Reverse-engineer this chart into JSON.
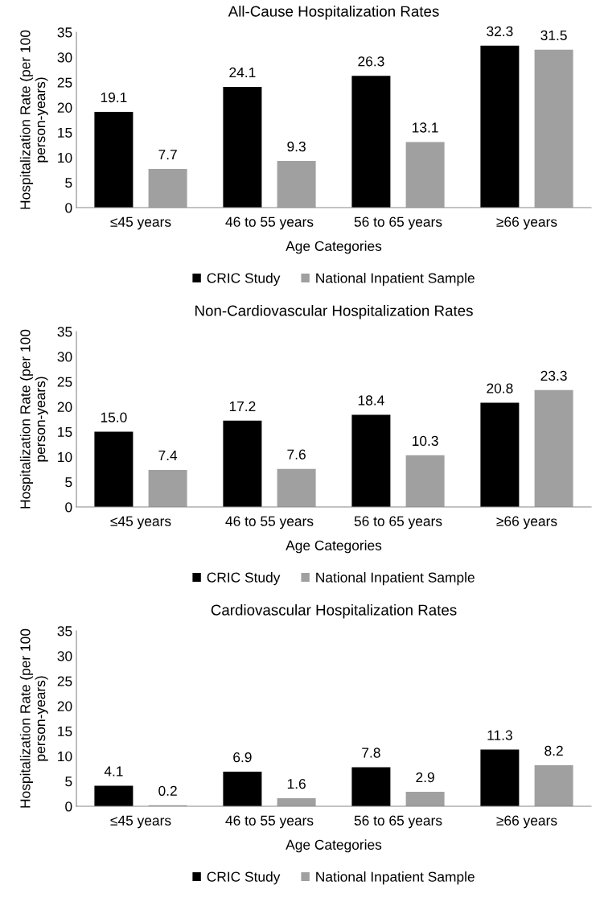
{
  "chart_data": [
    {
      "type": "bar",
      "title": "All-Cause Hospitalization Rates",
      "xlabel": "Age Categories",
      "ylabel": "Hospitalization Rate (per 100 person-years)",
      "categories": [
        "≤45 years",
        "46 to 55 years",
        "56 to 65 years",
        "≥66 years"
      ],
      "series": [
        {
          "name": "CRIC Study",
          "color": "#000000",
          "values": [
            19.1,
            24.1,
            26.3,
            32.3
          ]
        },
        {
          "name": "National Inpatient Sample",
          "color": "#a0a0a0",
          "values": [
            7.7,
            9.3,
            13.1,
            31.5
          ]
        }
      ],
      "ylim": [
        0,
        35
      ],
      "yticks": [
        0,
        5,
        10,
        15,
        20,
        25,
        30,
        35
      ],
      "data_labels": true,
      "legend": "bottom",
      "grid": false
    },
    {
      "type": "bar",
      "title": "Non-Cardiovascular Hospitalization Rates",
      "xlabel": "Age Categories",
      "ylabel": "Hospitalization Rate (per 100 person-years)",
      "categories": [
        "≤45 years",
        "46 to 55 years",
        "56 to 65 years",
        "≥66 years"
      ],
      "series": [
        {
          "name": "CRIC Study",
          "color": "#000000",
          "values": [
            15.0,
            17.2,
            18.4,
            20.8
          ],
          "value_labels": [
            "15.0",
            "17.2",
            "18.4",
            "20.8"
          ]
        },
        {
          "name": "National Inpatient Sample",
          "color": "#a0a0a0",
          "values": [
            7.4,
            7.6,
            10.3,
            23.3
          ],
          "value_labels": [
            "7.4",
            "7.6",
            "10.3",
            "23.3"
          ]
        }
      ],
      "ylim": [
        0,
        35
      ],
      "yticks": [
        0,
        5,
        10,
        15,
        20,
        25,
        30,
        35
      ],
      "legend": "bottom",
      "grid": false
    },
    {
      "type": "bar",
      "title": "Cardiovascular Hospitalization Rates",
      "xlabel": "Age Categories",
      "ylabel": "Hospitalization Rate (per 100 person-years)",
      "categories": [
        "≤45 years",
        "46 to 55 years",
        "56 to 65 years",
        "≥66 years"
      ],
      "series": [
        {
          "name": "CRIC Study",
          "color": "#000000",
          "values": [
            4.1,
            6.9,
            7.8,
            11.3
          ]
        },
        {
          "name": "National Inpatient Sample",
          "color": "#a0a0a0",
          "values": [
            0.2,
            1.6,
            2.9,
            8.2
          ]
        }
      ],
      "ylim": [
        0,
        35
      ],
      "yticks": [
        0,
        5,
        10,
        15,
        20,
        25,
        30,
        35
      ],
      "data_labels": true,
      "legend": "bottom",
      "grid": false
    }
  ]
}
